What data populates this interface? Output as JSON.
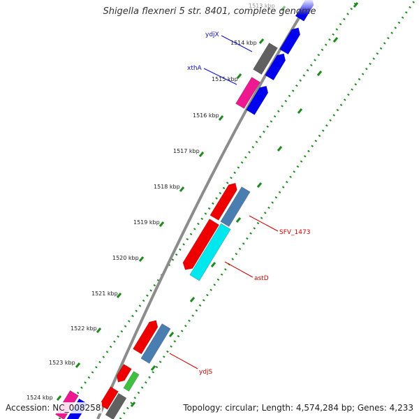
{
  "title": "Shigella flexneri 5 str. 8401, complete genome",
  "accession": "Accession: NC_008258",
  "summary": "Topology: circular; Length: 4,574,284 bp; Genes: 4,233",
  "ticks": [
    {
      "label": "1513 kbp",
      "faded": true
    },
    {
      "label": "1514 kbp",
      "faded": false
    },
    {
      "label": "1515 kbp",
      "faded": false
    },
    {
      "label": "1516 kbp",
      "faded": false
    },
    {
      "label": "1517 kbp",
      "faded": false
    },
    {
      "label": "1518 kbp",
      "faded": false
    },
    {
      "label": "1519 kbp",
      "faded": false
    },
    {
      "label": "1520 kbp",
      "faded": false
    },
    {
      "label": "1521 kbp",
      "faded": false
    },
    {
      "label": "1522 kbp",
      "faded": false
    },
    {
      "label": "1523 kbp",
      "faded": false
    },
    {
      "label": "1524 kbp",
      "faded": false
    }
  ],
  "gene_labels": [
    {
      "name": "ydjX",
      "color": "#1010d0"
    },
    {
      "name": "xthA",
      "color": "#1010d0"
    },
    {
      "name": "SFV_1473",
      "color": "#cc0000"
    },
    {
      "name": "astD",
      "color": "#cc0000"
    },
    {
      "name": "ydjS",
      "color": "#cc0000"
    }
  ],
  "colors": {
    "backbone": "#8c8c8c",
    "tick_dots": "#1e8a1e",
    "gene_blue": "#0000ee",
    "gene_red": "#ee0000",
    "gene_steelblue": "#4a7db0",
    "gene_cyan": "#00e8ee",
    "gene_gray": "#606060",
    "gene_magenta": "#ee1890",
    "gene_green": "#40c040"
  }
}
